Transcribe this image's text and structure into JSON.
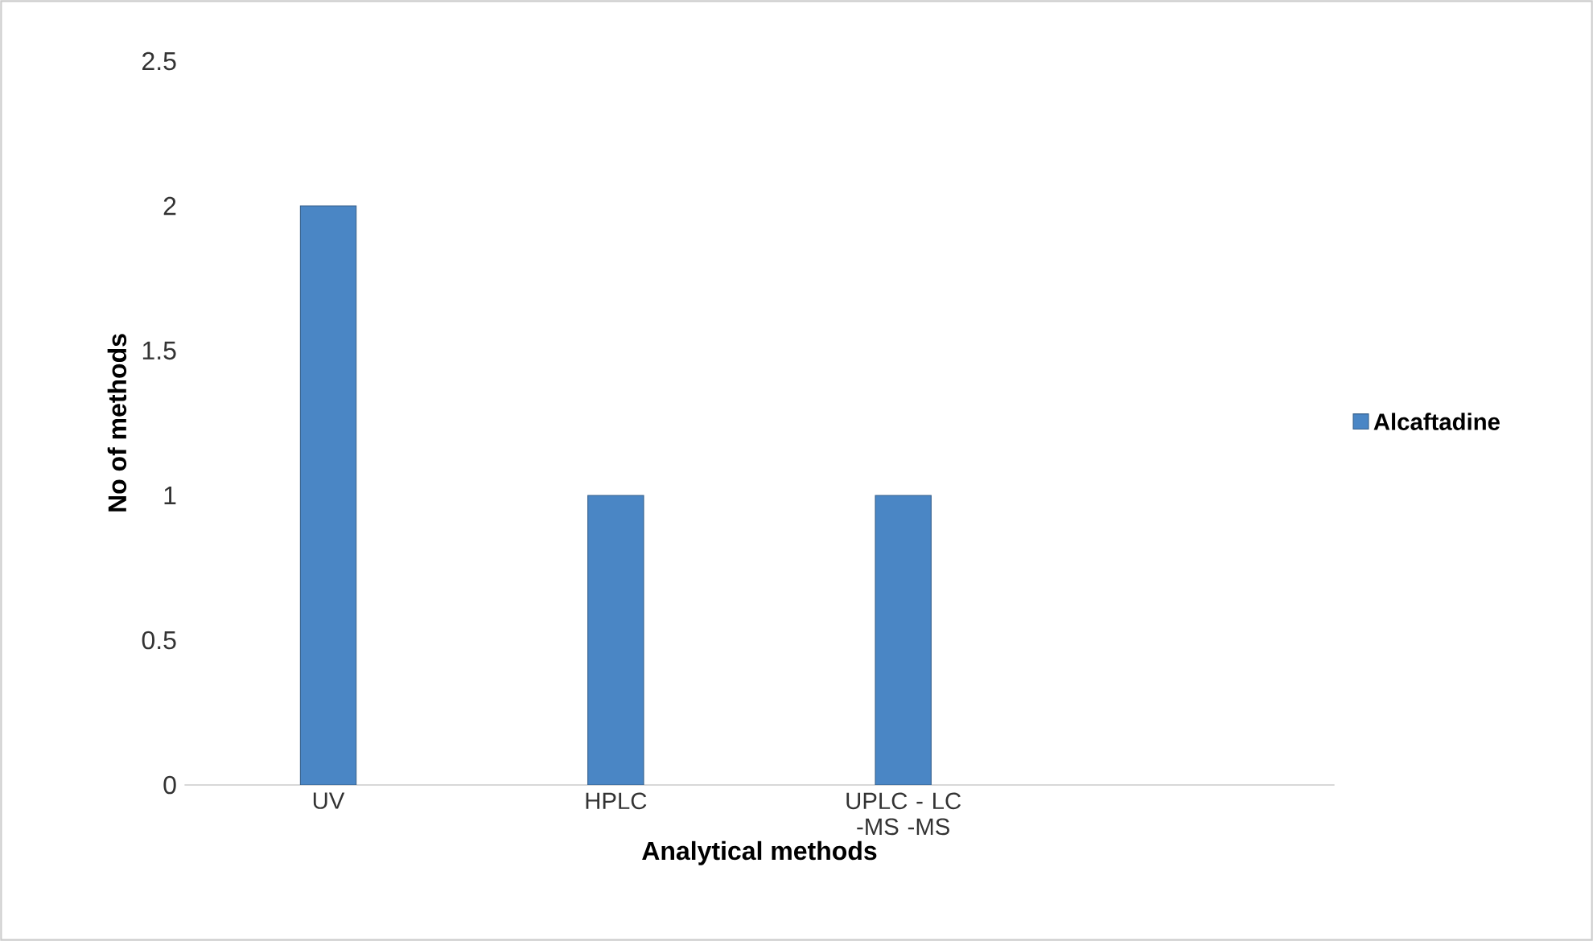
{
  "chart_data": {
    "type": "bar",
    "xlabel": "Analytical methods",
    "ylabel": "No of methods",
    "categories": [
      "UV",
      "HPLC",
      "UPLC - LC -MS -MS",
      null
    ],
    "series": [
      {
        "name": "Alcaftadine",
        "color": "#4a86c5",
        "values": [
          2,
          1,
          1,
          null
        ]
      }
    ],
    "ylim": [
      0,
      2.5
    ],
    "yticks": [
      0,
      0.5,
      1,
      1.5,
      2,
      2.5
    ],
    "grid": false,
    "legend": "right"
  }
}
